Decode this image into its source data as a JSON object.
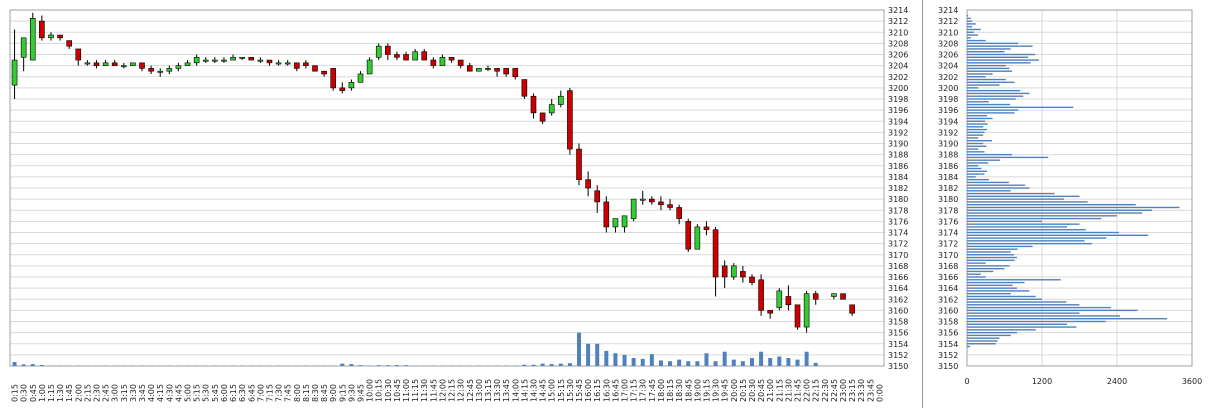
{
  "chart_data": [
    {
      "type": "candlestick",
      "x": [
        "0:15",
        "0:30",
        "0:45",
        "1:00",
        "1:15",
        "1:30",
        "1:45",
        "2:00",
        "2:15",
        "2:30",
        "2:45",
        "3:00",
        "3:15",
        "3:30",
        "3:45",
        "4:00",
        "4:15",
        "4:30",
        "4:45",
        "5:00",
        "5:15",
        "5:30",
        "5:45",
        "6:00",
        "6:15",
        "6:30",
        "6:45",
        "7:00",
        "7:15",
        "7:30",
        "7:45",
        "8:00",
        "8:15",
        "8:30",
        "8:45",
        "9:00",
        "9:15",
        "9:30",
        "9:45",
        "10:00",
        "10:15",
        "10:30",
        "10:45",
        "11:00",
        "11:15",
        "11:30",
        "11:45",
        "12:00",
        "12:15",
        "12:30",
        "12:45",
        "13:00",
        "13:15",
        "13:30",
        "13:45",
        "14:00",
        "14:15",
        "14:30",
        "14:45",
        "15:00",
        "15:15",
        "15:30",
        "15:45",
        "16:00",
        "16:15",
        "16:30",
        "16:45",
        "17:00",
        "17:15",
        "17:30",
        "17:45",
        "18:00",
        "18:15",
        "18:30",
        "18:45",
        "19:00",
        "19:15",
        "19:30",
        "19:45",
        "20:00",
        "20:15",
        "20:30",
        "20:45",
        "21:00",
        "21:15",
        "21:30",
        "21:45",
        "22:00",
        "22:15",
        "22:30",
        "22:45",
        "23:00",
        "23:15",
        "23:30",
        "23:45",
        "0:00"
      ],
      "candles": [
        {
          "o": 3200.5,
          "h": 3210.5,
          "l": 3198.0,
          "c": 3205.0
        },
        {
          "o": 3205.5,
          "h": 3209.0,
          "l": 3203.0,
          "c": 3209.0
        },
        {
          "o": 3205.0,
          "h": 3213.5,
          "l": 3205.0,
          "c": 3212.5
        },
        {
          "o": 3212.0,
          "h": 3213.0,
          "l": 3208.5,
          "c": 3209.0
        },
        {
          "o": 3209.0,
          "h": 3210.0,
          "l": 3208.5,
          "c": 3209.5
        },
        {
          "o": 3209.5,
          "h": 3209.5,
          "l": 3208.5,
          "c": 3209.0
        },
        {
          "o": 3208.5,
          "h": 3208.5,
          "l": 3207.0,
          "c": 3207.5
        },
        {
          "o": 3207.0,
          "h": 3207.0,
          "l": 3204.0,
          "c": 3205.0
        },
        {
          "o": 3204.5,
          "h": 3205.0,
          "l": 3204.0,
          "c": 3204.5
        },
        {
          "o": 3204.5,
          "h": 3205.0,
          "l": 3203.5,
          "c": 3204.0
        },
        {
          "o": 3204.0,
          "h": 3205.0,
          "l": 3204.0,
          "c": 3204.5
        },
        {
          "o": 3204.5,
          "h": 3205.0,
          "l": 3204.0,
          "c": 3204.0
        },
        {
          "o": 3204.0,
          "h": 3204.5,
          "l": 3203.5,
          "c": 3204.0
        },
        {
          "o": 3204.0,
          "h": 3204.5,
          "l": 3204.0,
          "c": 3204.5
        },
        {
          "o": 3204.5,
          "h": 3204.5,
          "l": 3203.0,
          "c": 3203.5
        },
        {
          "o": 3203.5,
          "h": 3204.0,
          "l": 3202.5,
          "c": 3203.0
        },
        {
          "o": 3203.0,
          "h": 3203.5,
          "l": 3202.0,
          "c": 3203.0
        },
        {
          "o": 3203.0,
          "h": 3204.0,
          "l": 3202.5,
          "c": 3203.5
        },
        {
          "o": 3203.5,
          "h": 3204.5,
          "l": 3203.0,
          "c": 3204.0
        },
        {
          "o": 3204.0,
          "h": 3205.0,
          "l": 3204.0,
          "c": 3204.5
        },
        {
          "o": 3204.5,
          "h": 3206.0,
          "l": 3204.0,
          "c": 3205.5
        },
        {
          "o": 3205.0,
          "h": 3205.5,
          "l": 3204.5,
          "c": 3205.0
        },
        {
          "o": 3205.0,
          "h": 3205.5,
          "l": 3204.5,
          "c": 3205.0
        },
        {
          "o": 3205.0,
          "h": 3205.5,
          "l": 3204.5,
          "c": 3205.0
        },
        {
          "o": 3205.0,
          "h": 3206.0,
          "l": 3205.0,
          "c": 3205.5
        },
        {
          "o": 3205.5,
          "h": 3205.5,
          "l": 3205.0,
          "c": 3205.5
        },
        {
          "o": 3205.5,
          "h": 3205.5,
          "l": 3205.0,
          "c": 3205.0
        },
        {
          "o": 3205.0,
          "h": 3205.5,
          "l": 3204.5,
          "c": 3205.0
        },
        {
          "o": 3205.0,
          "h": 3205.0,
          "l": 3204.0,
          "c": 3204.5
        },
        {
          "o": 3204.5,
          "h": 3205.0,
          "l": 3204.0,
          "c": 3204.5
        },
        {
          "o": 3204.5,
          "h": 3205.0,
          "l": 3204.0,
          "c": 3204.5
        },
        {
          "o": 3204.5,
          "h": 3204.5,
          "l": 3203.0,
          "c": 3203.5
        },
        {
          "o": 3204.5,
          "h": 3205.0,
          "l": 3203.5,
          "c": 3204.0
        },
        {
          "o": 3204.0,
          "h": 3204.0,
          "l": 3203.0,
          "c": 3203.0
        },
        {
          "o": 3203.0,
          "h": 3203.0,
          "l": 3202.0,
          "c": 3202.5
        },
        {
          "o": 3203.5,
          "h": 3203.5,
          "l": 3199.5,
          "c": 3200.0
        },
        {
          "o": 3200.0,
          "h": 3201.0,
          "l": 3199.0,
          "c": 3199.5
        },
        {
          "o": 3200.0,
          "h": 3201.5,
          "l": 3199.5,
          "c": 3201.0
        },
        {
          "o": 3201.0,
          "h": 3203.0,
          "l": 3201.0,
          "c": 3202.5
        },
        {
          "o": 3202.5,
          "h": 3205.5,
          "l": 3202.5,
          "c": 3205.0
        },
        {
          "o": 3205.5,
          "h": 3208.0,
          "l": 3205.0,
          "c": 3207.5
        },
        {
          "o": 3207.5,
          "h": 3208.0,
          "l": 3205.0,
          "c": 3206.0
        },
        {
          "o": 3206.0,
          "h": 3206.5,
          "l": 3205.0,
          "c": 3205.5
        },
        {
          "o": 3206.0,
          "h": 3206.5,
          "l": 3205.0,
          "c": 3205.0
        },
        {
          "o": 3205.0,
          "h": 3207.0,
          "l": 3205.0,
          "c": 3206.5
        },
        {
          "o": 3206.5,
          "h": 3207.0,
          "l": 3205.0,
          "c": 3205.0
        },
        {
          "o": 3205.0,
          "h": 3205.5,
          "l": 3203.5,
          "c": 3204.0
        },
        {
          "o": 3204.0,
          "h": 3206.0,
          "l": 3204.0,
          "c": 3205.5
        },
        {
          "o": 3205.5,
          "h": 3205.5,
          "l": 3204.5,
          "c": 3205.0
        },
        {
          "o": 3205.0,
          "h": 3205.0,
          "l": 3203.5,
          "c": 3204.0
        },
        {
          "o": 3204.0,
          "h": 3204.5,
          "l": 3203.0,
          "c": 3203.0
        },
        {
          "o": 3203.0,
          "h": 3203.5,
          "l": 3203.0,
          "c": 3203.5
        },
        {
          "o": 3203.5,
          "h": 3204.0,
          "l": 3203.0,
          "c": 3203.5
        },
        {
          "o": 3203.5,
          "h": 3203.5,
          "l": 3202.0,
          "c": 3203.0
        },
        {
          "o": 3203.5,
          "h": 3203.5,
          "l": 3202.0,
          "c": 3202.5
        },
        {
          "o": 3203.5,
          "h": 3203.5,
          "l": 3201.5,
          "c": 3202.0
        },
        {
          "o": 3201.5,
          "h": 3201.5,
          "l": 3198.0,
          "c": 3198.5
        },
        {
          "o": 3198.5,
          "h": 3199.0,
          "l": 3194.5,
          "c": 3195.5
        },
        {
          "o": 3195.5,
          "h": 3195.5,
          "l": 3193.5,
          "c": 3194.0
        },
        {
          "o": 3195.5,
          "h": 3198.0,
          "l": 3195.0,
          "c": 3197.0
        },
        {
          "o": 3197.0,
          "h": 3199.5,
          "l": 3196.5,
          "c": 3198.5
        },
        {
          "o": 3199.5,
          "h": 3200.0,
          "l": 3188.0,
          "c": 3189.0
        },
        {
          "o": 3189.0,
          "h": 3190.0,
          "l": 3182.5,
          "c": 3183.5
        },
        {
          "o": 3183.5,
          "h": 3185.0,
          "l": 3180.5,
          "c": 3182.0
        },
        {
          "o": 3181.5,
          "h": 3182.5,
          "l": 3177.5,
          "c": 3179.5
        },
        {
          "o": 3179.5,
          "h": 3180.5,
          "l": 3174.0,
          "c": 3175.0
        },
        {
          "o": 3175.0,
          "h": 3176.5,
          "l": 3174.0,
          "c": 3176.5
        },
        {
          "o": 3175.0,
          "h": 3177.0,
          "l": 3174.0,
          "c": 3177.0
        },
        {
          "o": 3176.5,
          "h": 3180.0,
          "l": 3176.0,
          "c": 3180.0
        },
        {
          "o": 3180.0,
          "h": 3181.5,
          "l": 3179.0,
          "c": 3180.0
        },
        {
          "o": 3180.0,
          "h": 3180.5,
          "l": 3179.0,
          "c": 3179.5
        },
        {
          "o": 3179.5,
          "h": 3180.5,
          "l": 3178.0,
          "c": 3179.0
        },
        {
          "o": 3179.0,
          "h": 3180.0,
          "l": 3178.0,
          "c": 3178.5
        },
        {
          "o": 3178.5,
          "h": 3179.0,
          "l": 3175.5,
          "c": 3176.5
        },
        {
          "o": 3176.0,
          "h": 3176.5,
          "l": 3170.5,
          "c": 3171.0
        },
        {
          "o": 3171.0,
          "h": 3175.5,
          "l": 3171.0,
          "c": 3175.0
        },
        {
          "o": 3175.0,
          "h": 3176.0,
          "l": 3173.5,
          "c": 3174.5
        },
        {
          "o": 3174.5,
          "h": 3175.0,
          "l": 3162.5,
          "c": 3166.0
        },
        {
          "o": 3168.0,
          "h": 3169.0,
          "l": 3164.0,
          "c": 3166.0
        },
        {
          "o": 3166.0,
          "h": 3168.5,
          "l": 3165.5,
          "c": 3168.0
        },
        {
          "o": 3167.0,
          "h": 3168.0,
          "l": 3165.0,
          "c": 3166.0
        },
        {
          "o": 3166.0,
          "h": 3166.5,
          "l": 3164.5,
          "c": 3165.0
        },
        {
          "o": 3165.5,
          "h": 3166.5,
          "l": 3159.0,
          "c": 3160.0
        },
        {
          "o": 3160.0,
          "h": 3160.0,
          "l": 3158.5,
          "c": 3159.5
        },
        {
          "o": 3160.5,
          "h": 3164.0,
          "l": 3160.0,
          "c": 3163.5
        },
        {
          "o": 3162.5,
          "h": 3164.5,
          "l": 3160.0,
          "c": 3161.0
        },
        {
          "o": 3161.0,
          "h": 3161.0,
          "l": 3156.5,
          "c": 3157.0
        },
        {
          "o": 3157.0,
          "h": 3163.5,
          "l": 3156.0,
          "c": 3163.0
        },
        {
          "o": 3163.0,
          "h": 3163.5,
          "l": 3161.0,
          "c": 3162.0
        },
        {},
        {
          "o": 3162.5,
          "h": 3163.0,
          "l": 3162.0,
          "c": 3163.0
        },
        {
          "o": 3163.0,
          "h": 3163.0,
          "l": 3162.0,
          "c": 3162.0
        },
        {
          "o": 3161.0,
          "h": 3161.0,
          "l": 3159.0,
          "c": 3159.5
        },
        {},
        {},
        {}
      ],
      "volume": [
        2.5,
        1,
        1.2,
        0.6,
        0.2,
        0.2,
        0.2,
        0.2,
        0.2,
        0.2,
        0.2,
        0.2,
        0.2,
        0.2,
        0.2,
        0.2,
        0.2,
        0.2,
        0.2,
        0.2,
        0.2,
        0.2,
        0.2,
        0.2,
        0.2,
        0.2,
        0.2,
        0.2,
        0.2,
        0.2,
        0.2,
        0.2,
        0.2,
        0.2,
        0.2,
        0.2,
        1.5,
        1.2,
        0.5,
        0.2,
        0.5,
        0.5,
        0.6,
        0.5,
        0.2,
        0.2,
        0.2,
        0.2,
        0.2,
        0.2,
        0.2,
        0.2,
        0.2,
        0.2,
        0.2,
        0.2,
        0.8,
        0.8,
        1.5,
        1.2,
        1.5,
        1.8,
        21,
        14,
        14,
        9.5,
        8,
        7,
        5,
        4.5,
        7.5,
        3.5,
        3,
        4,
        3,
        3,
        8,
        3,
        9,
        4,
        3,
        5,
        9,
        5,
        6,
        5,
        4,
        9,
        2,
        0,
        0,
        0,
        0,
        0,
        0,
        0
      ],
      "ylim": [
        3150,
        3214
      ],
      "yticks": [
        "3214",
        "3212",
        "3210",
        "3208",
        "3206",
        "3204",
        "3202",
        "3200",
        "3198",
        "3196",
        "3194",
        "3192",
        "3190",
        "3188",
        "3186",
        "3184",
        "3182",
        "3180",
        "3178",
        "3176",
        "3174",
        "3172",
        "3170",
        "3168",
        "3166",
        "3164",
        "3162",
        "3160",
        "3158",
        "3156",
        "3154",
        "3152",
        "3150"
      ],
      "colors": {
        "up": "#33cc33",
        "down": "#cc0000",
        "volume": "#4f81bd",
        "grid": "#d9d9d9"
      }
    },
    {
      "type": "bar",
      "orientation": "horizontal",
      "price_start": 3214,
      "price_step": -0.5,
      "values": [
        0,
        1,
        20,
        60,
        80,
        140,
        80,
        220,
        110,
        180,
        60,
        300,
        820,
        1050,
        700,
        600,
        1090,
        980,
        1150,
        1020,
        620,
        680,
        720,
        410,
        300,
        620,
        760,
        520,
        180,
        850,
        1000,
        900,
        780,
        350,
        690,
        1700,
        820,
        760,
        320,
        410,
        290,
        330,
        260,
        320,
        280,
        260,
        180,
        400,
        260,
        310,
        180,
        280,
        720,
        1300,
        530,
        340,
        180,
        230,
        320,
        280,
        140,
        350,
        670,
        930,
        1000,
        700,
        1400,
        1800,
        1550,
        1930,
        2700,
        3400,
        2960,
        2800,
        2400,
        2150,
        1200,
        1800,
        1600,
        1900,
        2430,
        2900,
        2230,
        1880,
        2000,
        1050,
        810,
        700,
        750,
        800,
        760,
        300,
        680,
        600,
        420,
        220,
        300,
        1500,
        920,
        730,
        800,
        1000,
        700,
        1100,
        1200,
        1590,
        1800,
        2300,
        2730,
        1800,
        2450,
        3200,
        2220,
        1600,
        1750,
        1100,
        800,
        700,
        520,
        490,
        460,
        50,
        0,
        0,
        0,
        0,
        0,
        0,
        0,
        0,
        0,
        0,
        0,
        0,
        0,
        0
      ],
      "ylim": [
        3150,
        3214
      ],
      "yticks": [
        "3214",
        "3212",
        "3210",
        "3208",
        "3206",
        "3204",
        "3202",
        "3200",
        "3198",
        "3196",
        "3194",
        "3192",
        "3190",
        "3188",
        "3186",
        "3184",
        "3182",
        "3180",
        "3178",
        "3176",
        "3174",
        "3172",
        "3170",
        "3168",
        "3166",
        "3164",
        "3162",
        "3160",
        "3158",
        "3156",
        "3154",
        "3152",
        "3150"
      ],
      "xlim": [
        0,
        3600
      ],
      "xticks": [
        "0",
        "1200",
        "2400",
        "3600"
      ],
      "colors": {
        "bar": "#4f81bd",
        "grid": "#d9d9d9"
      }
    }
  ]
}
